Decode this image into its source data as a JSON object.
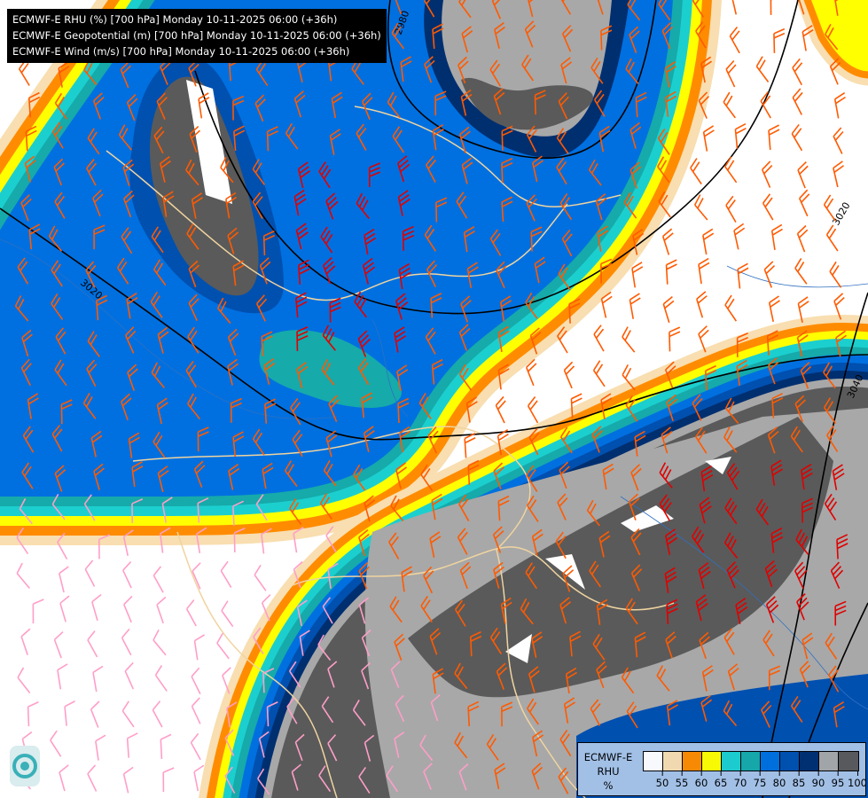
{
  "titles": [
    "ECMWF-E RHU (%) [700 hPa] Monday 10-11-2025 06:00 (+36h)",
    "ECMWF-E Geopotential (m) [700 hPa] Monday 10-11-2025 06:00 (+36h)",
    "ECMWF-E Wind (m/s) [700 hPa] Monday 10-11-2025 06:00 (+36h)"
  ],
  "contour_labels": [
    "2980",
    "3020",
    "3020",
    "3040"
  ],
  "legend": {
    "title_lines": [
      "ECMWF-E",
      "RHU",
      "%"
    ],
    "colors": [
      "#ffffff",
      "#f8deb0",
      "#ff8c00",
      "#ffff00",
      "#1ccfcf",
      "#16aaaa",
      "#0070e0",
      "#0050b0",
      "#002f70",
      "#a8a8a8",
      "#5a5a5a"
    ],
    "ticks": [
      "50",
      "55",
      "60",
      "65",
      "70",
      "75",
      "80",
      "85",
      "90",
      "95",
      "100"
    ]
  },
  "wind_colors": {
    "light": "#ff9ec8",
    "moderate": "#ff5a00",
    "strong": "#e00000"
  }
}
